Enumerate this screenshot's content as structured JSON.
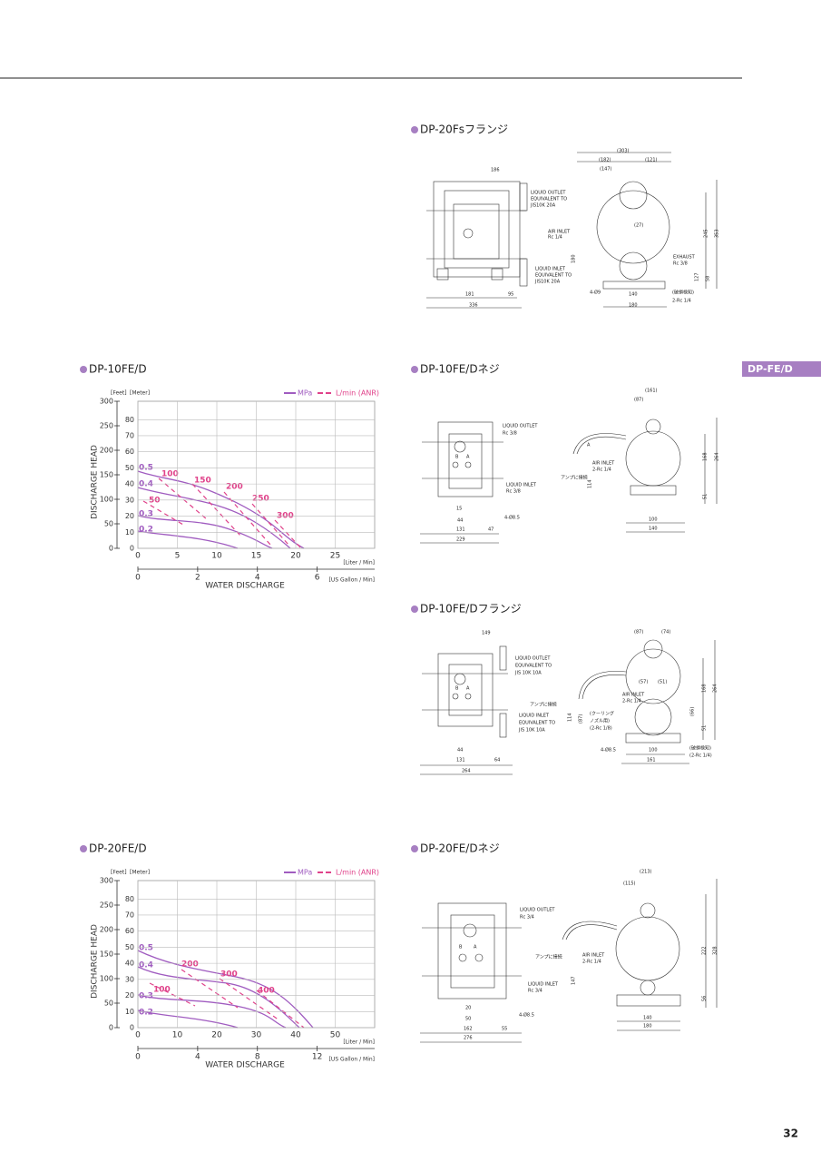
{
  "header": {
    "side_tab": "DP-FE/D",
    "page_number": "32"
  },
  "charts": [
    {
      "title": "DP-10FE/D",
      "feet_unit": "[Feet]",
      "meter_unit": "[Meter]",
      "y_label": "DISCHARGE HEAD",
      "feet_lim": [
        0,
        300
      ],
      "feet_ticks": [
        0,
        50,
        100,
        150,
        200,
        250,
        300
      ],
      "meter_lim": [
        0,
        91.44
      ],
      "meter_ticks": [
        0,
        10,
        20,
        30,
        40,
        50,
        60,
        70,
        80
      ],
      "lmin_lim": [
        0,
        30
      ],
      "lmin_ticks": [
        0,
        5,
        10,
        15,
        20,
        25
      ],
      "lmin_unit": "[Liter / Min]",
      "gal_lim": [
        0,
        7.925
      ],
      "gal_ticks": [
        0,
        2,
        4,
        6
      ],
      "gal_unit": "[US Gallon / Min]",
      "x_label": "WATER DISCHARGE",
      "legend": [
        "MPa",
        "L/min (ANR)"
      ],
      "pressure_labels": [
        "0.5",
        "0.4",
        "0.3",
        "0.2"
      ],
      "air_labels": [
        "100",
        "150",
        "200",
        "250",
        "300",
        "50"
      ]
    },
    {
      "title": "DP-20FE/D",
      "feet_unit": "[Feet]",
      "meter_unit": "[Meter]",
      "y_label": "DISCHARGE HEAD",
      "feet_lim": [
        0,
        300
      ],
      "feet_ticks": [
        0,
        50,
        100,
        150,
        200,
        250,
        300
      ],
      "meter_lim": [
        0,
        91.44
      ],
      "meter_ticks": [
        0,
        10,
        20,
        30,
        40,
        50,
        60,
        70,
        80
      ],
      "lmin_lim": [
        0,
        60
      ],
      "lmin_ticks": [
        0,
        10,
        20,
        30,
        40,
        50
      ],
      "lmin_unit": "[Liter / Min]",
      "gal_lim": [
        0,
        15.85
      ],
      "gal_ticks": [
        0,
        4,
        8,
        12
      ],
      "gal_unit": "[US Gallon / Min]",
      "x_label": "WATER DISCHARGE",
      "legend": [
        "MPa",
        "L/min (ANR)"
      ],
      "pressure_labels": [
        "0.5",
        "0.4",
        "0.3",
        "0.2"
      ],
      "air_labels": [
        "200",
        "300",
        "400",
        "100"
      ]
    }
  ],
  "drawings": [
    {
      "title": "DP-20Fsフランジ",
      "labels": [
        "186",
        "LIQUID OUTLET",
        "EQUIVALENT TO",
        "JIS10K 20A",
        "AIR INLET",
        "Rc 1/4",
        "LIQUID INLET",
        "EQUIVALENT TO",
        "JIS10K 20A",
        "181",
        "95",
        "336",
        "(303)",
        "(182)",
        "(121)",
        "(147)",
        "(27)",
        "180",
        "EXHAUST",
        "Rc 3/8",
        "245",
        "353",
        "127",
        "58",
        "4-Ø9",
        "140",
        "(破損検知)",
        "2-Rc 1/4",
        "180"
      ]
    },
    {
      "title": "DP-10FE/Dネジ",
      "labels": [
        "(161)",
        "(87)",
        "LIQUID OUTLET",
        "Rc 3/8",
        "A",
        "AIR INLET",
        "2-Rc 1/4",
        "アンプに接続",
        "168",
        "264",
        "114",
        "51",
        "LIQUID INLET",
        "Rc 3/8",
        "15",
        "44",
        "4-Ø8.5",
        "131",
        "47",
        "229",
        "100",
        "140",
        "B",
        "A"
      ]
    },
    {
      "title": "DP-10FE/Dフランジ",
      "labels": [
        "149",
        "(87)",
        "(74)",
        "LIQUID OUTLET",
        "EQUIVALENT TO",
        "JIS 10K 10A",
        "(57)",
        "(51)",
        "AIR INLET",
        "2-Rc 1/4",
        "アンプに接続",
        "(クーリング",
        "ノズル用)",
        "(2-Rc 1/8)",
        "168",
        "264",
        "114",
        "(87)",
        "(66)",
        "51",
        "LIQUID INLET",
        "EQUIVALENT TO",
        "JIS 10K 10A",
        "44",
        "131",
        "64",
        "264",
        "4-Ø8.5",
        "100",
        "161",
        "(破損検知)",
        "(2-Rc 1/4)",
        "B",
        "A"
      ]
    },
    {
      "title": "DP-20FE/Dネジ",
      "labels": [
        "(213)",
        "(115)",
        "LIQUID OUTLET",
        "Rc 3/4",
        "アンプに接続",
        "AIR INLET",
        "2-Rc 1/4",
        "222",
        "328",
        "147",
        "56",
        "LIQUID INLET",
        "Rc 3/4",
        "20",
        "50",
        "162",
        "55",
        "4-Ø8.5",
        "276",
        "140",
        "180",
        "B",
        "A"
      ]
    }
  ]
}
